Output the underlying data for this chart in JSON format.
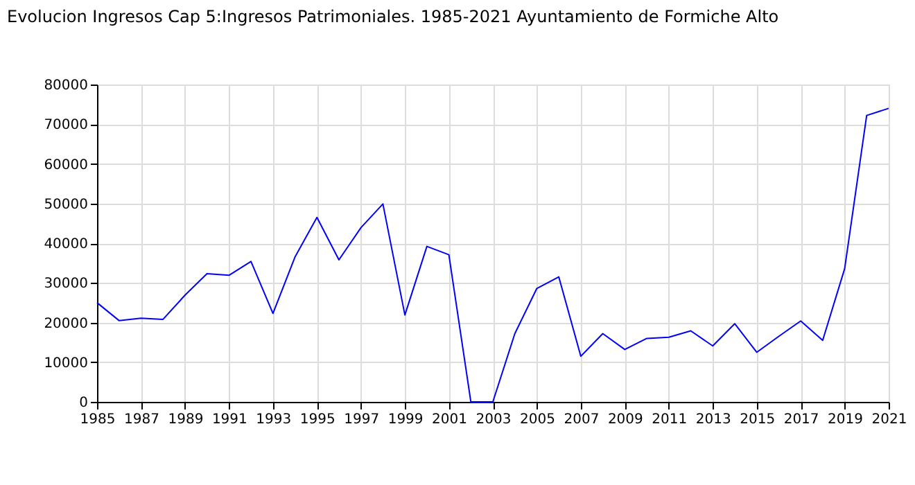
{
  "chart_data": {
    "type": "line",
    "title": "Evolucion Ingresos Cap 5:Ingresos Patrimoniales. 1985-2021 Ayuntamiento de Formiche Alto",
    "x": [
      1985,
      1986,
      1987,
      1988,
      1989,
      1990,
      1991,
      1992,
      1993,
      1994,
      1995,
      1996,
      1997,
      1998,
      1999,
      2000,
      2001,
      2002,
      2003,
      2004,
      2005,
      2006,
      2007,
      2008,
      2009,
      2010,
      2011,
      2012,
      2013,
      2014,
      2015,
      2016,
      2017,
      2018,
      2019,
      2020,
      2021
    ],
    "series": [
      {
        "color": "#0000ff",
        "values": [
          25000,
          20500,
          21100,
          20800,
          26900,
          32300,
          31900,
          35400,
          22300,
          36500,
          46500,
          35800,
          43900,
          49900,
          21900,
          39200,
          37100,
          0,
          0,
          17200,
          28600,
          31500,
          11500,
          17200,
          13200,
          16000,
          16300,
          17900,
          14100,
          19700,
          12500,
          16500,
          20400,
          15500,
          33600,
          72200,
          74000
        ]
      }
    ],
    "xlim": [
      1985,
      2021
    ],
    "ylim": [
      0,
      80000
    ],
    "xticks": [
      1985,
      1987,
      1989,
      1991,
      1993,
      1995,
      1997,
      1999,
      2001,
      2003,
      2005,
      2007,
      2009,
      2011,
      2013,
      2015,
      2017,
      2019,
      2021
    ],
    "yticks": [
      0,
      10000,
      20000,
      30000,
      40000,
      50000,
      60000,
      70000,
      80000
    ],
    "grid": true,
    "line_style": "solid",
    "marker": "none"
  }
}
